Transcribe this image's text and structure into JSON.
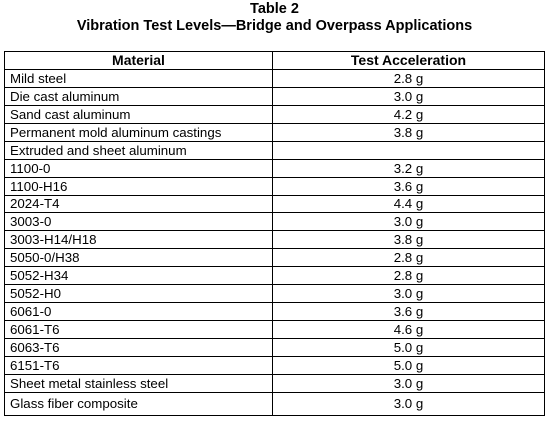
{
  "table_number": "Table 2",
  "table_title": "Vibration Test Levels—Bridge and Overpass Applications",
  "columns": {
    "material": "Material",
    "acceleration": "Test Acceleration"
  },
  "rows": [
    {
      "material": "Mild steel",
      "acceleration": "2.8 g"
    },
    {
      "material": "Die cast aluminum",
      "acceleration": "3.0 g"
    },
    {
      "material": "Sand cast aluminum",
      "acceleration": "4.2 g"
    },
    {
      "material": "Permanent mold aluminum castings",
      "acceleration": "3.8 g"
    },
    {
      "material": "Extruded and sheet aluminum",
      "acceleration": ""
    },
    {
      "material": "1100-0",
      "acceleration": "3.2 g"
    },
    {
      "material": "1100-H16",
      "acceleration": "3.6 g"
    },
    {
      "material": "2024-T4",
      "acceleration": "4.4 g"
    },
    {
      "material": "3003-0",
      "acceleration": "3.0 g"
    },
    {
      "material": "3003-H14/H18",
      "acceleration": "3.8 g"
    },
    {
      "material": "5050-0/H38",
      "acceleration": "2.8 g"
    },
    {
      "material": "5052-H34",
      "acceleration": "2.8 g"
    },
    {
      "material": "5052-H0",
      "acceleration": "3.0 g"
    },
    {
      "material": "6061-0",
      "acceleration": "3.6 g"
    },
    {
      "material": "6061-T6",
      "acceleration": "4.6 g"
    },
    {
      "material": "6063-T6",
      "acceleration": "5.0 g"
    },
    {
      "material": "6151-T6",
      "acceleration": "5.0 g"
    },
    {
      "material": "Sheet metal stainless steel",
      "acceleration": "3.0 g"
    },
    {
      "material": "Glass fiber composite",
      "acceleration": "3.0 g"
    }
  ]
}
